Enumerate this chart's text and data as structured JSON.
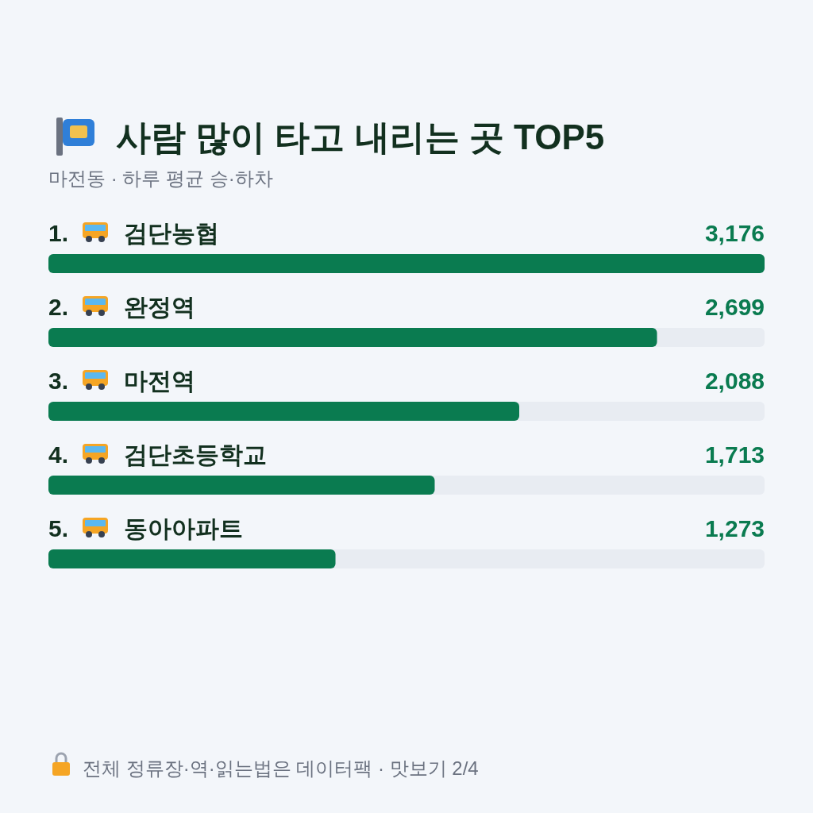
{
  "chart_data": {
    "type": "bar",
    "orientation": "horizontal",
    "title": "사람 많이 타고 내리는 곳 TOP5",
    "subtitle": "마전동 · 하루 평균 승·하차",
    "categories": [
      "1. 검단농협",
      "2. 완정역",
      "3. 마전역",
      "4. 검단초등학교",
      "5. 동아아파트"
    ],
    "values": [
      3176,
      2699,
      2088,
      1713,
      1273
    ],
    "color": "#0a7b50",
    "data_labels": true,
    "value_labels": [
      "3,176",
      "2,699",
      "2,088",
      "1,713",
      "1,273"
    ],
    "annotations": [
      "전체 정류장·역·읽는법은 데이터팩 · 맛보기 2/4"
    ]
  }
}
